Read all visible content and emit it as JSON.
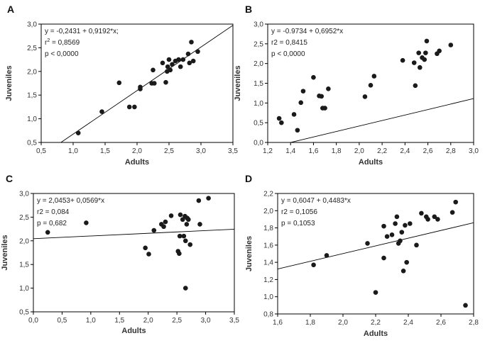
{
  "chart_data": [
    {
      "type": "scatter",
      "panel_label": "A",
      "xlabel": "Adults",
      "ylabel": "Juveniles",
      "xlim": [
        0.5,
        3.5
      ],
      "ylim": [
        0.5,
        3.0
      ],
      "xticks": [
        "0,5",
        "1,0",
        "1,5",
        "2,0",
        "2,5",
        "3,0",
        "3,5"
      ],
      "yticks": [
        "0,5",
        "1,0",
        "1,5",
        "2,0",
        "2,5",
        "3,0"
      ],
      "annotation": [
        "y = -0,2431 + 0,9192*x;",
        "r",
        "2",
        " = 0,8569",
        "p < 0,0000"
      ],
      "fit": {
        "intercept": -0.2431,
        "slope": 0.9192
      },
      "points": [
        [
          1.08,
          0.7
        ],
        [
          1.45,
          1.15
        ],
        [
          1.72,
          1.76
        ],
        [
          1.88,
          1.25
        ],
        [
          1.96,
          1.25
        ],
        [
          2.05,
          1.63
        ],
        [
          2.05,
          1.67
        ],
        [
          2.23,
          1.75
        ],
        [
          2.25,
          2.03
        ],
        [
          2.27,
          1.75
        ],
        [
          2.4,
          2.18
        ],
        [
          2.45,
          1.77
        ],
        [
          2.47,
          2.0
        ],
        [
          2.48,
          2.1
        ],
        [
          2.5,
          2.25
        ],
        [
          2.52,
          2.03
        ],
        [
          2.55,
          2.15
        ],
        [
          2.6,
          2.22
        ],
        [
          2.65,
          2.25
        ],
        [
          2.68,
          2.1
        ],
        [
          2.72,
          2.25
        ],
        [
          2.8,
          2.37
        ],
        [
          2.82,
          2.18
        ],
        [
          2.85,
          2.62
        ],
        [
          2.88,
          2.22
        ],
        [
          2.95,
          2.42
        ]
      ]
    },
    {
      "type": "scatter",
      "panel_label": "B",
      "xlabel": "Adults",
      "ylabel": "Juveniles",
      "xlim": [
        1.2,
        3.0
      ],
      "ylim": [
        0.0,
        3.0
      ],
      "xticks": [
        "1,2",
        "1,4",
        "1,6",
        "1,8",
        "2,0",
        "2,2",
        "2,4",
        "2,6",
        "2,8",
        "3,0"
      ],
      "yticks": [
        "0,0",
        "0,5",
        "1,0",
        "1,5",
        "2,0",
        "2,5",
        "3,0"
      ],
      "annotation": [
        "y = -0.9734 + 0,6952*x",
        "r2 = 0,8415",
        "p < 0,0000"
      ],
      "fit": {
        "intercept": -0.9734,
        "slope": 0.6952
      },
      "points": [
        [
          1.3,
          0.61
        ],
        [
          1.32,
          0.5
        ],
        [
          1.43,
          0.71
        ],
        [
          1.46,
          0.31
        ],
        [
          1.49,
          1.01
        ],
        [
          1.51,
          1.3
        ],
        [
          1.6,
          1.65
        ],
        [
          1.65,
          1.18
        ],
        [
          1.67,
          1.17
        ],
        [
          1.68,
          0.87
        ],
        [
          1.7,
          0.87
        ],
        [
          1.73,
          1.36
        ],
        [
          2.05,
          1.16
        ],
        [
          2.1,
          1.45
        ],
        [
          2.13,
          1.68
        ],
        [
          2.38,
          2.08
        ],
        [
          2.48,
          2.02
        ],
        [
          2.49,
          1.44
        ],
        [
          2.52,
          2.27
        ],
        [
          2.53,
          1.9
        ],
        [
          2.55,
          2.15
        ],
        [
          2.57,
          2.1
        ],
        [
          2.58,
          2.27
        ],
        [
          2.59,
          2.57
        ],
        [
          2.68,
          2.25
        ],
        [
          2.7,
          2.32
        ],
        [
          2.8,
          2.47
        ]
      ]
    },
    {
      "type": "scatter",
      "panel_label": "C",
      "xlabel": "Adults",
      "ylabel": "Juveniles",
      "xlim": [
        0.0,
        3.5
      ],
      "ylim": [
        0.5,
        3.0
      ],
      "xticks": [
        "0,0",
        "0,5",
        "1,0",
        "1,5",
        "2,0",
        "2,5",
        "3,0",
        "3,5"
      ],
      "yticks": [
        "0,5",
        "1,0",
        "1,5",
        "2,0",
        "2,5",
        "3,0"
      ],
      "annotation": [
        "y = 2,0453+ 0,0569*x",
        "r2 = 0,084",
        "p = 0,682"
      ],
      "fit": {
        "intercept": 2.0453,
        "slope": 0.0569
      },
      "points": [
        [
          0.25,
          2.18
        ],
        [
          0.92,
          2.38
        ],
        [
          1.95,
          1.85
        ],
        [
          2.01,
          1.72
        ],
        [
          2.1,
          2.22
        ],
        [
          2.23,
          2.35
        ],
        [
          2.27,
          2.3
        ],
        [
          2.3,
          2.4
        ],
        [
          2.4,
          2.53
        ],
        [
          2.52,
          1.78
        ],
        [
          2.54,
          1.73
        ],
        [
          2.55,
          2.1
        ],
        [
          2.56,
          2.55
        ],
        [
          2.6,
          2.45
        ],
        [
          2.62,
          2.1
        ],
        [
          2.64,
          2.52
        ],
        [
          2.65,
          1.0
        ],
        [
          2.65,
          2.0
        ],
        [
          2.67,
          2.35
        ],
        [
          2.68,
          2.48
        ],
        [
          2.7,
          2.45
        ],
        [
          2.73,
          1.92
        ],
        [
          2.88,
          2.85
        ],
        [
          3.05,
          2.9
        ],
        [
          2.9,
          2.35
        ]
      ]
    },
    {
      "type": "scatter",
      "panel_label": "D",
      "xlabel": "Adults",
      "ylabel": "Juveniles",
      "xlim": [
        1.6,
        2.8
      ],
      "ylim": [
        0.8,
        2.2
      ],
      "xticks": [
        "1,6",
        "1,8",
        "2,0",
        "2,2",
        "2,4",
        "2,6",
        "2,8"
      ],
      "yticks": [
        "0,8",
        "1,0",
        "1,2",
        "1,4",
        "1,6",
        "1,8",
        "2,0",
        "2,2"
      ],
      "annotation": [
        "y = 0,6047 + 0,4483*x",
        "r2 = 0,1056",
        "p = 0,1053"
      ],
      "fit": {
        "intercept": 0.6047,
        "slope": 0.4483
      },
      "points": [
        [
          1.82,
          1.37
        ],
        [
          1.9,
          1.48
        ],
        [
          2.15,
          1.62
        ],
        [
          2.2,
          1.05
        ],
        [
          2.25,
          1.45
        ],
        [
          2.25,
          1.82
        ],
        [
          2.27,
          1.7
        ],
        [
          2.3,
          1.72
        ],
        [
          2.32,
          1.85
        ],
        [
          2.33,
          1.93
        ],
        [
          2.34,
          1.62
        ],
        [
          2.35,
          1.65
        ],
        [
          2.36,
          1.75
        ],
        [
          2.37,
          1.3
        ],
        [
          2.38,
          1.83
        ],
        [
          2.39,
          1.4
        ],
        [
          2.41,
          1.85
        ],
        [
          2.45,
          1.6
        ],
        [
          2.48,
          1.97
        ],
        [
          2.51,
          1.93
        ],
        [
          2.52,
          1.9
        ],
        [
          2.56,
          1.93
        ],
        [
          2.58,
          1.9
        ],
        [
          2.67,
          1.98
        ],
        [
          2.69,
          2.1
        ],
        [
          2.75,
          0.9
        ]
      ]
    }
  ]
}
